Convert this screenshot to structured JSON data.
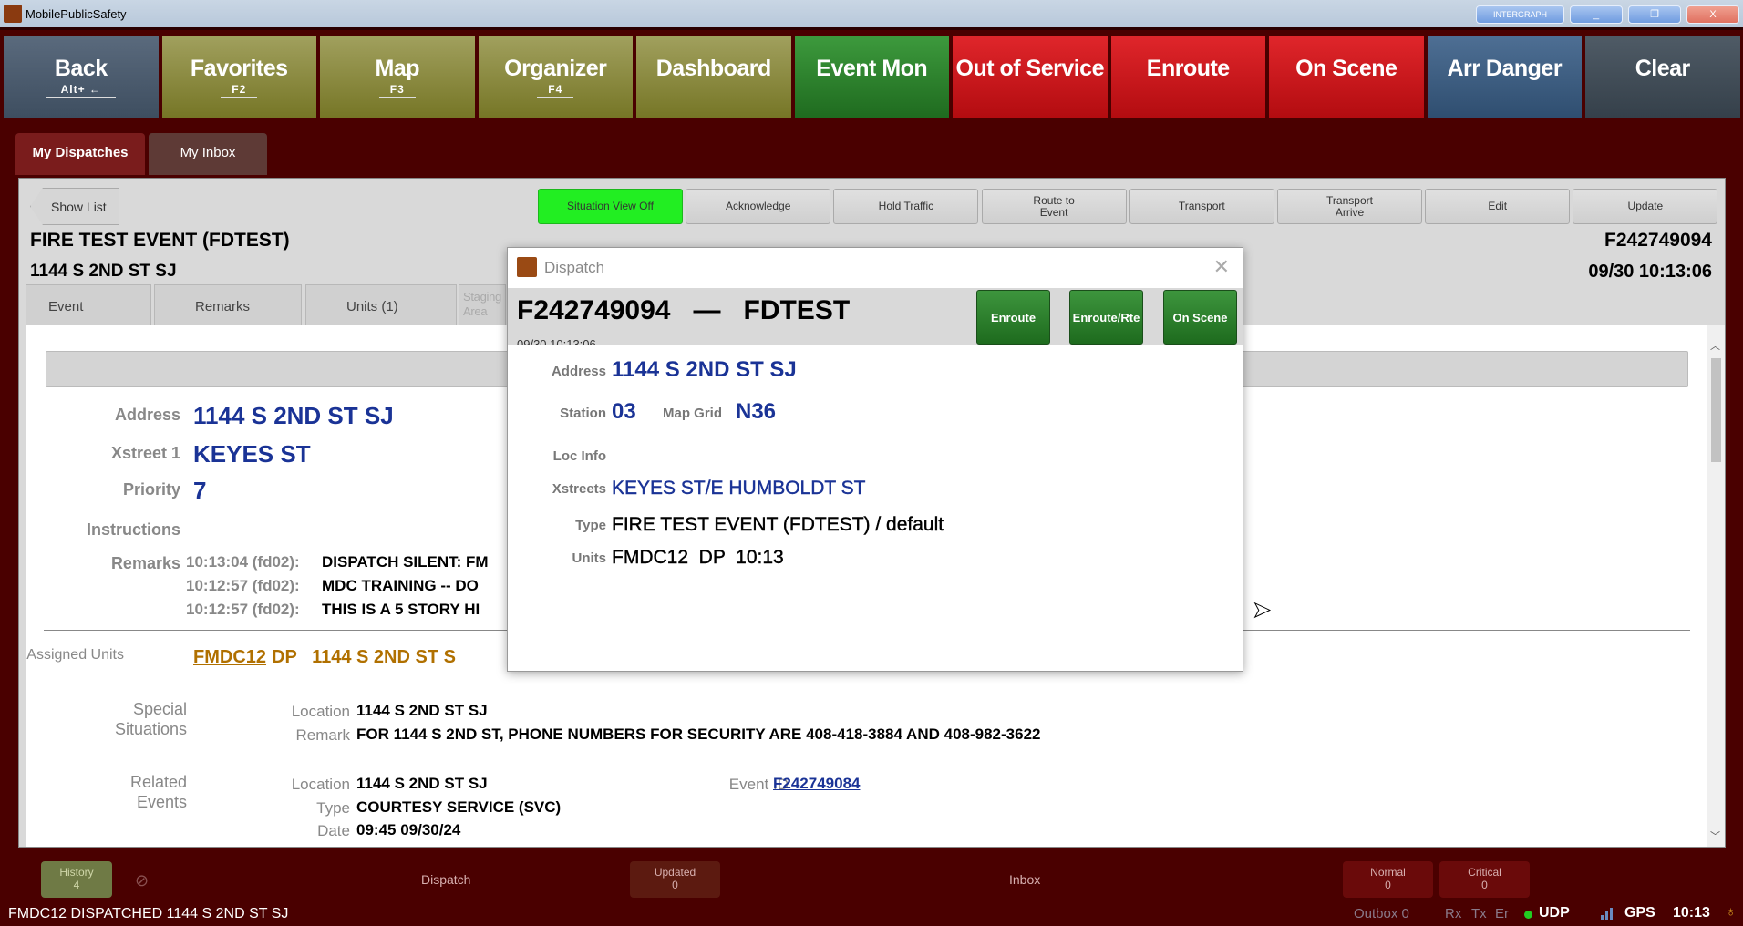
{
  "window": {
    "title": "MobilePublicSafety",
    "brand": "INTERGRAPH",
    "minimize": "_",
    "restore": "❐",
    "close": "X"
  },
  "toolbar": [
    {
      "label": "Back",
      "shortcut": "Alt+ ←",
      "color": "slate"
    },
    {
      "label": "Favorites",
      "shortcut": "F2",
      "color": "olive"
    },
    {
      "label": "Map",
      "shortcut": "F3",
      "color": "olive"
    },
    {
      "label": "Organizer",
      "shortcut": "F4",
      "color": "olive"
    },
    {
      "label": "Dashboard",
      "shortcut": "",
      "color": "olive"
    },
    {
      "label": "Event Mon",
      "shortcut": "",
      "color": "green"
    },
    {
      "label": "Out of Service",
      "shortcut": "",
      "color": "red"
    },
    {
      "label": "Enroute",
      "shortcut": "",
      "color": "red"
    },
    {
      "label": "On Scene",
      "shortcut": "",
      "color": "red"
    },
    {
      "label": "Arr Danger",
      "shortcut": "",
      "color": "blue"
    },
    {
      "label": "Clear",
      "shortcut": "",
      "color": "dark"
    }
  ],
  "tabs": [
    {
      "label": "My Dispatches",
      "active": true
    },
    {
      "label": "My Inbox",
      "active": false
    }
  ],
  "panel": {
    "show_list": "Show List",
    "actions": [
      "Situation View Off",
      "Acknowledge",
      "Hold Traffic",
      "Route to\nEvent",
      "Transport",
      "Transport\nArrive",
      "Edit",
      "Update"
    ],
    "active_action_color": "#22ee22",
    "event_title": "FIRE TEST EVENT (FDTEST)",
    "event_address": "1144 S 2ND ST SJ",
    "event_id": "F242749094",
    "event_time": "09/30 10:13:06",
    "subtabs": [
      "Event",
      "Remarks",
      "Units (1)",
      "Staging Area"
    ],
    "address_label": "Address",
    "address": "1144 S 2ND ST SJ",
    "xstreet_label": "Xstreet 1",
    "xstreet": "KEYES ST",
    "priority_label": "Priority",
    "priority": "7",
    "instructions_label": "Instructions",
    "remarks_label": "Remarks",
    "remarks": [
      {
        "time": "10:13:04 (fd02):",
        "text": "DISPATCH SILENT: FM"
      },
      {
        "time": "10:12:57 (fd02):",
        "text": "MDC TRAINING -- DO"
      },
      {
        "time": "10:12:57 (fd02):",
        "text": "THIS IS A 5 STORY HI"
      }
    ],
    "assigned_label": "Assigned Units",
    "assigned_unit": "FMDC12",
    "assigned_rest": "DP   1144 S 2ND ST S",
    "special_label": "Special\nSituations",
    "special_location_label": "Location",
    "special_location": "1144 S 2ND ST SJ",
    "special_remark_label": "Remark",
    "special_remark": "FOR 1144 S 2ND ST, PHONE NUMBERS FOR SECURITY ARE 408-418-3884 AND 408-982-3622",
    "related_label": "Related\nEvents",
    "related_location_label": "Location",
    "related_location": "1144 S 2ND ST SJ",
    "related_type_label": "Type",
    "related_type": "COURTESY SERVICE (SVC)",
    "related_date_label": "Date",
    "related_date": "09:45  09/30/24",
    "related_eventid_label": "Event ID",
    "related_eventid": "F242749084"
  },
  "dialog": {
    "title": "Dispatch",
    "header": "F242749094   —   FDTEST",
    "header_time": "09/30 10:13:06",
    "buttons": [
      "Enroute",
      "Enroute/Rte",
      "On Scene"
    ],
    "address_label": "Address",
    "address": "1144 S 2ND ST SJ",
    "station_label": "Station",
    "station": "03",
    "mapgrid_label": "Map Grid",
    "mapgrid": "N36",
    "locinfo_label": "Loc Info",
    "xstreets_label": "Xstreets",
    "xstreets": "KEYES ST/E HUMBOLDT ST",
    "type_label": "Type",
    "type": "FIRE TEST EVENT (FDTEST) / default",
    "units_label": "Units",
    "units": "FMDC12  DP  10:13"
  },
  "bottom": {
    "history_label": "History",
    "history_count": "4",
    "dispatch_label": "Dispatch",
    "updated_label": "Updated",
    "updated_count": "0",
    "inbox_label": "Inbox",
    "normal_label": "Normal",
    "normal_count": "0",
    "critical_label": "Critical",
    "critical_count": "0"
  },
  "status": {
    "message": "FMDC12 DISPATCHED 1144 S 2ND ST SJ",
    "outbox": "Outbox 0",
    "rx": "Rx",
    "tx": "Tx",
    "er": "Er",
    "udp": "UDP",
    "gps": "GPS",
    "time": "10:13",
    "udp_color": "#22cc22"
  }
}
